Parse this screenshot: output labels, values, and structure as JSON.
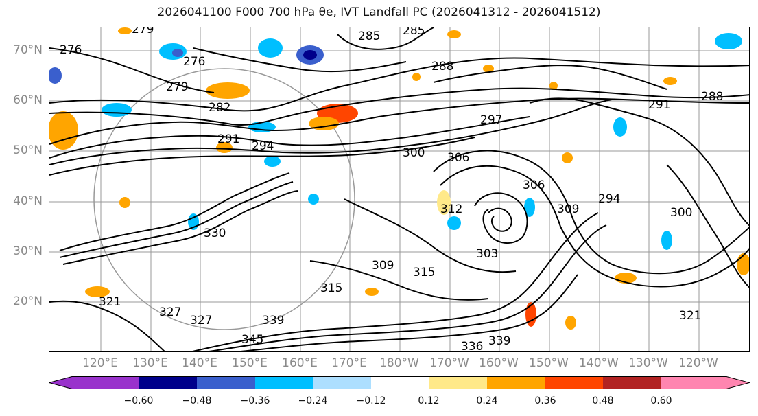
{
  "title": "2026041100 F000 700 hPa θe, IVT Landfall PC (2026041312 - 2026041512)",
  "lat_labels": [
    "70°N",
    "60°N",
    "50°N",
    "40°N",
    "30°N",
    "20°N"
  ],
  "lon_labels": [
    "120°E",
    "130°E",
    "140°E",
    "150°E",
    "160°E",
    "170°E",
    "180°W",
    "170°W",
    "160°W",
    "150°W",
    "140°W",
    "130°W",
    "120°W"
  ],
  "contour_labels": [
    "279",
    "285",
    "285",
    "288",
    "276",
    "276",
    "279",
    "282",
    "291",
    "294",
    "297",
    "300",
    "306",
    "306",
    "309",
    "309",
    "315",
    "315",
    "321",
    "327",
    "327",
    "330",
    "336",
    "339",
    "339",
    "345",
    "288",
    "291",
    "294",
    "300",
    "312",
    "321",
    "303"
  ],
  "colorbar": {
    "tick_labels": [
      "−0.60",
      "−0.48",
      "−0.36",
      "−0.24",
      "−0.12",
      "0.12",
      "0.24",
      "0.36",
      "0.48",
      "0.60"
    ],
    "colors": [
      "#9932CC",
      "#00008B",
      "#3A5FCD",
      "#00BFFF",
      "#ADDFFF",
      "#FFFFFF",
      "#FFE989",
      "#FFA500",
      "#FF4500",
      "#B22222",
      "#FF85B0",
      "#FF85B0"
    ]
  }
}
